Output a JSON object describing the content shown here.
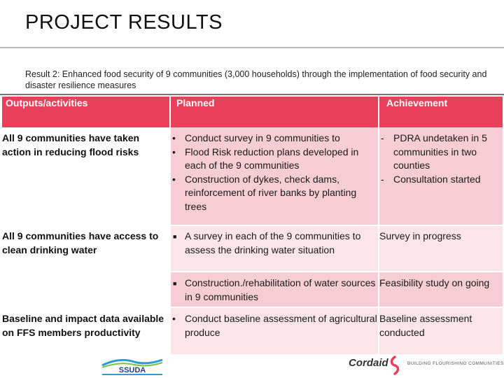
{
  "title": "PROJECT RESULTS",
  "subtitle": "Result 2: Enhanced food security of 9 communities (3,000 households) through the implementation of food security and disaster resilience measures",
  "table": {
    "headers": [
      "Outputs/activities",
      "Planned",
      "Achievement"
    ],
    "rows": [
      {
        "activity": "All 9 communities have taken action in reducing flood risks",
        "planned": [
          "Conduct survey in 9 communities to",
          "Flood Risk reduction plans developed in each of the 9 communities",
          "Construction of dykes, check dams, reinforcement of river banks by planting trees"
        ],
        "achievement": [
          "PDRA undetaken in 5 communities in two counties",
          "Consultation started"
        ]
      },
      {
        "activity": "All 9 communities have access to clean drinking water",
        "planned": [
          "A survey in each of the 9 communities to assess the drinking water situation"
        ],
        "achievement": "Survey in progress"
      },
      {
        "activity": "",
        "planned": [
          "Construction./rehabilitation of water sources in 9 communities"
        ],
        "achievement": "Feasibility study on going"
      },
      {
        "activity": "Baseline and impact data available on FFS members productivity",
        "planned": [
          "Conduct baseline assessment of agricultural produce"
        ],
        "achievement": "Baseline assessment conducted"
      }
    ]
  },
  "bullets": {
    "round": "•",
    "square": "■",
    "dash": "-"
  },
  "logos": {
    "ssuda": "SSUDA",
    "cordaid": "Cordaid",
    "cordaid_tagline": "BUILDING FLOURISHING COMMUNITIES"
  },
  "colors": {
    "header": "#e8405a",
    "row_pink": "#f6cdd4",
    "row_light": "#fbe5e9"
  }
}
